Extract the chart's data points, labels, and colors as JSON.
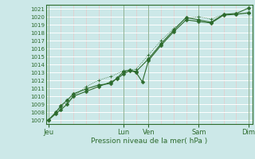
{
  "title": "",
  "xlabel": "Pression niveau de la mer( hPa )",
  "bg_color": "#cce8e8",
  "plot_bg": "#cce8e8",
  "grid_color_major": "#ffffff",
  "grid_color_minor": "#e8c8c8",
  "line_color": "#2d6b2d",
  "ylim": [
    1006.5,
    1021.5
  ],
  "yticks": [
    1007,
    1008,
    1009,
    1010,
    1011,
    1012,
    1013,
    1014,
    1015,
    1016,
    1017,
    1018,
    1019,
    1020,
    1021
  ],
  "day_labels": [
    "Jeu",
    "Lun",
    "Ven",
    "Sam",
    "Dim"
  ],
  "day_positions": [
    0,
    3,
    4,
    6,
    8
  ],
  "xlim": [
    -0.1,
    8.15
  ],
  "series1_x": [
    0,
    0.3,
    0.5,
    0.75,
    1.0,
    1.5,
    2.0,
    2.5,
    2.75,
    3.0,
    3.25,
    3.5,
    3.75,
    4.0,
    4.5,
    5.0,
    5.5,
    6.0,
    6.5,
    7.0,
    7.5,
    8.0
  ],
  "series1_y": [
    1007.0,
    1007.8,
    1008.3,
    1009.0,
    1010.0,
    1010.6,
    1011.2,
    1011.8,
    1012.2,
    1012.8,
    1013.2,
    1013.0,
    1011.8,
    1014.5,
    1016.4,
    1018.1,
    1019.6,
    1019.4,
    1019.2,
    1020.2,
    1020.3,
    1020.5
  ],
  "series2_x": [
    0,
    0.3,
    0.5,
    0.75,
    1.0,
    1.5,
    2.0,
    2.5,
    2.75,
    3.0,
    3.25,
    3.5,
    4.0,
    4.5,
    5.0,
    5.5,
    6.0,
    6.5,
    7.0,
    7.5,
    8.0
  ],
  "series2_y": [
    1007.0,
    1008.0,
    1008.8,
    1009.5,
    1010.3,
    1010.9,
    1011.4,
    1011.6,
    1012.3,
    1013.1,
    1013.3,
    1013.1,
    1014.7,
    1016.6,
    1018.3,
    1019.9,
    1019.6,
    1019.3,
    1020.3,
    1020.4,
    1021.1
  ],
  "series3_x": [
    0,
    0.5,
    1.0,
    1.5,
    2.0,
    2.5,
    3.0,
    3.5,
    4.0,
    4.5,
    5.0,
    5.5,
    6.0,
    6.5,
    7.0,
    7.5,
    8.0
  ],
  "series3_y": [
    1007.0,
    1008.6,
    1010.0,
    1011.2,
    1012.0,
    1012.5,
    1013.2,
    1013.4,
    1015.2,
    1017.0,
    1018.5,
    1019.8,
    1020.0,
    1019.7,
    1020.3,
    1020.4,
    1020.4
  ]
}
